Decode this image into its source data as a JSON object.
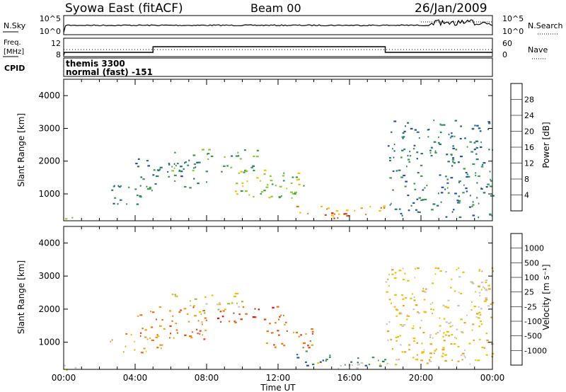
{
  "header": {
    "station": "Syowa East (fitACF)",
    "beam": "Beam 00",
    "date": "26/Jan/2009"
  },
  "top_panel": {
    "left_label": "N.Sky",
    "left_ticks": [
      "10^5",
      "10^0"
    ],
    "right_label": "N.Search",
    "right_ticks": [
      "10^5",
      "10^0"
    ]
  },
  "freq_panel": {
    "left_label_line1": "Freq.",
    "left_label_line2": "[MHz]",
    "left_ticks": [
      "12",
      "8"
    ],
    "right_label": "Nave",
    "right_ticks": [
      "60",
      "0"
    ]
  },
  "cpid_panel": {
    "label": "CPID",
    "line1": "themis 3300",
    "line2": "normal (fast) -151"
  },
  "x_axis": {
    "label": "Time UT",
    "ticks": [
      "00:00",
      "04:00",
      "08:00",
      "12:00",
      "16:00",
      "20:00",
      "00:00"
    ]
  },
  "chart_data": [
    {
      "type": "heatmap",
      "name": "power",
      "ylabel": "Slant Range [km]",
      "yticks": [
        "1000",
        "2000",
        "3000",
        "4000"
      ],
      "ylim": [
        180,
        4500
      ],
      "xlim": [
        0,
        24
      ],
      "colorbar": {
        "label": "Power [dB]",
        "ticks": [
          "4",
          "8",
          "12",
          "16",
          "20",
          "24",
          "28"
        ],
        "colors": [
          "#1f3fe0",
          "#2050b0",
          "#2a7a6a",
          "#3a9a4a",
          "#8acb3a",
          "#f0c010",
          "#f0a020",
          "#ee7010",
          "#e84010",
          "#dd1010"
        ]
      },
      "regions": [
        {
          "t0": 0.0,
          "t1": 1.0,
          "r0": 180,
          "r1": 420,
          "level": 3
        },
        {
          "t0": 2.5,
          "t1": 5.0,
          "r0": 700,
          "r1": 1300,
          "level": 2
        },
        {
          "t0": 4.0,
          "t1": 8.0,
          "r0": 1200,
          "r1": 2100,
          "level": 2
        },
        {
          "t0": 6.0,
          "t1": 11.0,
          "r0": 1700,
          "r1": 2400,
          "level": 3
        },
        {
          "t0": 9.5,
          "t1": 13.5,
          "r0": 900,
          "r1": 1800,
          "level": 4
        },
        {
          "t0": 13.0,
          "t1": 18.0,
          "r0": 300,
          "r1": 650,
          "level": 6
        },
        {
          "t0": 14.5,
          "t1": 17.5,
          "r0": 220,
          "r1": 500,
          "level": 9
        },
        {
          "t0": 18.0,
          "t1": 24.0,
          "r0": 300,
          "r1": 3300,
          "level": 2
        }
      ]
    },
    {
      "type": "heatmap",
      "name": "velocity",
      "ylabel": "Slant Range [km]",
      "yticks": [
        "1000",
        "2000",
        "3000",
        "4000"
      ],
      "ylim": [
        180,
        4500
      ],
      "xlim": [
        0,
        24
      ],
      "colorbar": {
        "label": "Velocity [m s⁻¹]",
        "ticks": [
          "1000",
          "500",
          "100",
          "25",
          "-25",
          "-100",
          "-500",
          "-1000"
        ],
        "colors": [
          "#1f3fe0",
          "#2050b0",
          "#2a7a6a",
          "#3a9a4a",
          "#8acb3a",
          "#c8c8c8",
          "#f0c010",
          "#f0a020",
          "#ee7010",
          "#e84010",
          "#dd1010"
        ]
      },
      "regions": [
        {
          "t0": 0.0,
          "t1": 1.0,
          "r0": 180,
          "r1": 420,
          "level": 5
        },
        {
          "t0": 2.5,
          "t1": 5.5,
          "r0": 700,
          "r1": 1300,
          "level": 7
        },
        {
          "t0": 4.0,
          "t1": 8.0,
          "r0": 1100,
          "r1": 2100,
          "level": 8
        },
        {
          "t0": 6.0,
          "t1": 10.0,
          "r0": 1900,
          "r1": 2500,
          "level": 5
        },
        {
          "t0": 8.5,
          "t1": 12.5,
          "r0": 1600,
          "r1": 2100,
          "level": 9
        },
        {
          "t0": 11.0,
          "t1": 14.0,
          "r0": 800,
          "r1": 1600,
          "level": 8
        },
        {
          "t0": 13.0,
          "t1": 18.0,
          "r0": 300,
          "r1": 750,
          "level": 2
        },
        {
          "t0": 14.0,
          "t1": 18.0,
          "r0": 220,
          "r1": 450,
          "level": 6
        },
        {
          "t0": 18.0,
          "t1": 24.0,
          "r0": 300,
          "r1": 3300,
          "level": 6
        }
      ]
    }
  ]
}
